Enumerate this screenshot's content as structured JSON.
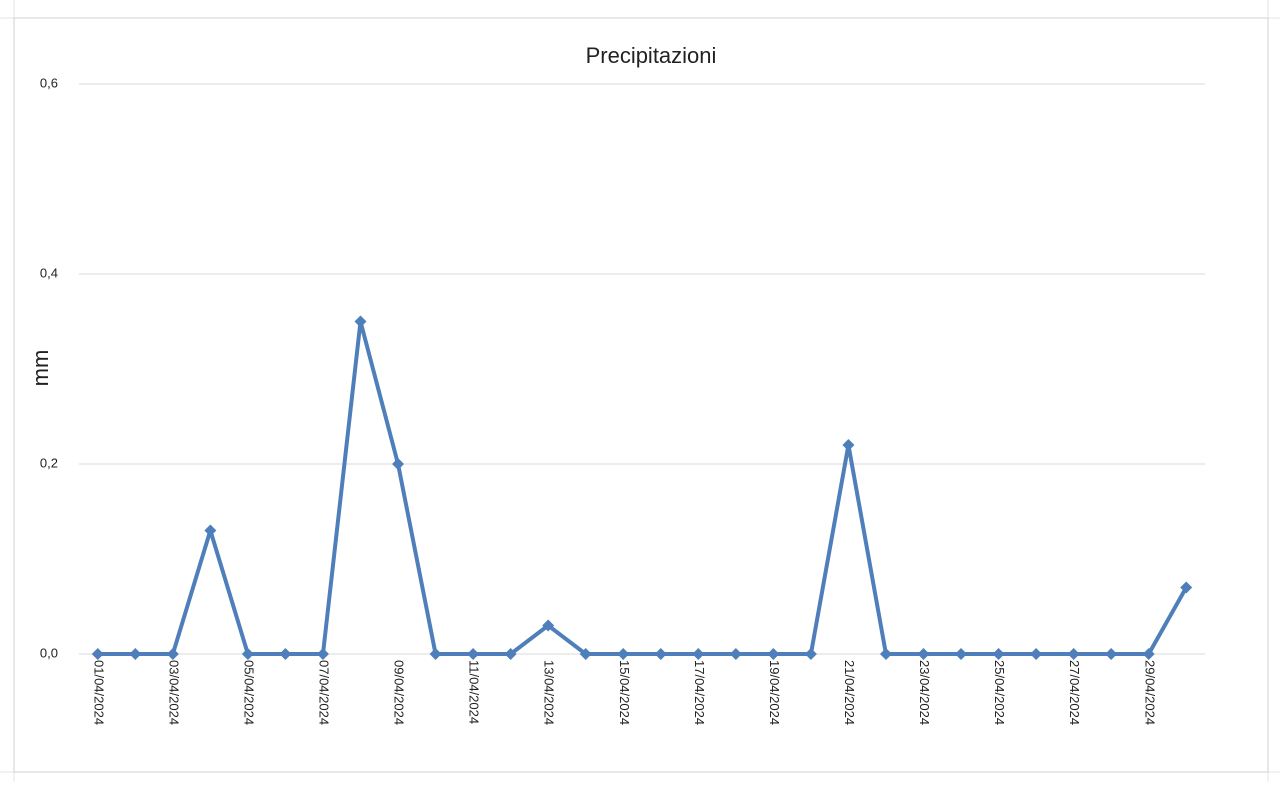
{
  "chart_data": {
    "type": "line",
    "title": "Precipitazioni",
    "y_label": "mm",
    "categories": [
      "01/04/2024",
      null,
      "03/04/2024",
      null,
      "05/04/2024",
      null,
      "07/04/2024",
      null,
      "09/04/2024",
      null,
      "11/04/2024",
      null,
      "13/04/2024",
      null,
      "15/04/2024",
      null,
      "17/04/2024",
      null,
      "19/04/2024",
      null,
      "21/04/2024",
      null,
      "23/04/2024",
      null,
      "25/04/2024",
      null,
      "27/04/2024",
      null,
      "29/04/2024",
      null
    ],
    "series": [
      {
        "name": "Precipitazioni",
        "color": "#4f7fba",
        "values": [
          0,
          0,
          0,
          0.13,
          0,
          0,
          0,
          0.35,
          0.2,
          0,
          0,
          0,
          0.03,
          0,
          0,
          0,
          0,
          0,
          0,
          0,
          0.22,
          0,
          0,
          0,
          0,
          0,
          0,
          0,
          0,
          0.07
        ]
      }
    ],
    "ylim": [
      0,
      0.6
    ],
    "yticks": [
      {
        "value": 0,
        "label": "0,0"
      },
      {
        "value": 0.2,
        "label": "0,2"
      },
      {
        "value": 0.4,
        "label": "0,4"
      },
      {
        "value": 0.6,
        "label": "0,6"
      }
    ],
    "grid": true
  }
}
